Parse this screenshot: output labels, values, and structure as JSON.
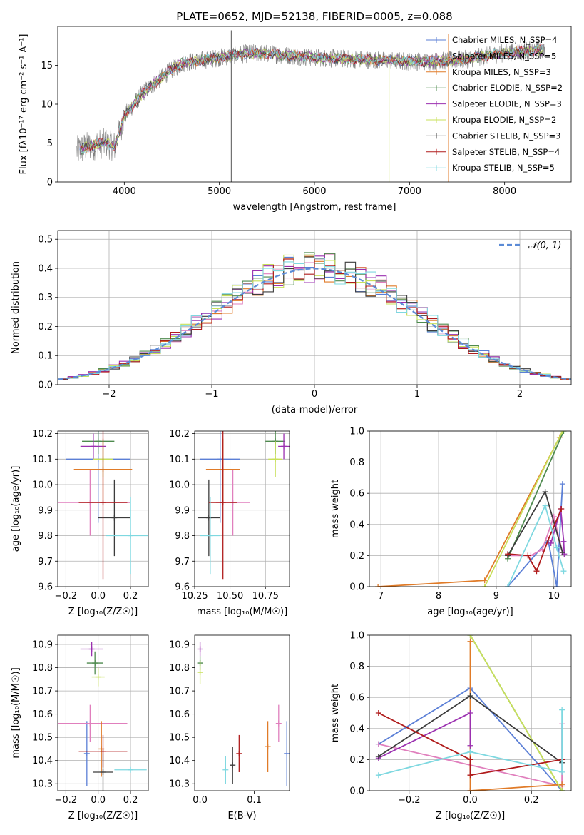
{
  "chart_data": [
    {
      "id": "spectrum",
      "type": "line",
      "title": "PLATE=0652, MJD=52138, FIBERID=0005, z=0.088",
      "xlabel": "wavelength [Angstrom, rest frame]",
      "ylabel": "Flux [fλ10⁻¹⁷ erg cm⁻² s⁻¹ A⁻¹]",
      "xlim": [
        3300,
        8700
      ],
      "ylim": [
        0,
        20
      ],
      "xticks": [
        4000,
        5000,
        6000,
        7000,
        8000
      ],
      "yticks": [
        0,
        5,
        10,
        15
      ],
      "legend_position": "top-right",
      "continuum": {
        "x": [
          3500,
          3600,
          3700,
          3800,
          3900,
          4000,
          4100,
          4200,
          4300,
          4400,
          4500,
          4600,
          4700,
          4800,
          4900,
          5000,
          5200,
          5400,
          5600,
          5800,
          6000,
          6200,
          6400,
          6600,
          6800,
          7000,
          7200,
          7400,
          7600,
          7800,
          8000,
          8200,
          8400
        ],
        "y": [
          4.0,
          4.5,
          4.8,
          5.0,
          4.6,
          8.5,
          10.0,
          11.5,
          12.5,
          13.5,
          14.5,
          15.2,
          15.5,
          15.6,
          15.8,
          16.0,
          16.4,
          16.6,
          16.4,
          16.2,
          16.0,
          15.9,
          15.8,
          15.7,
          15.6,
          15.5,
          15.5,
          15.6,
          15.8,
          16.2,
          16.6,
          16.8,
          17.0
        ]
      },
      "series": [
        {
          "name": "Chabrier MILES, N_SSP=4",
          "color": "#5b7fd6"
        },
        {
          "name": "Salpeter MILES, N_SSP=5",
          "color": "#e07fbd"
        },
        {
          "name": "Kroupa MILES, N_SSP=3",
          "color": "#e07b28"
        },
        {
          "name": "Chabrier ELODIE, N_SSP=2",
          "color": "#4e8a4e"
        },
        {
          "name": "Salpeter ELODIE, N_SSP=3",
          "color": "#9b30b0"
        },
        {
          "name": "Kroupa ELODIE, N_SSP=2",
          "color": "#c8e05a"
        },
        {
          "name": "Chabrier STELIB, N_SSP=3",
          "color": "#3c3c3c"
        },
        {
          "name": "Salpeter STELIB, N_SSP=4",
          "color": "#b01c1c"
        },
        {
          "name": "Kroupa STELIB, N_SSP=5",
          "color": "#7ed8e0"
        }
      ]
    },
    {
      "id": "residuals",
      "type": "line",
      "xlabel": "(data-model)/error",
      "ylabel": "Normed distribution",
      "xlim": [
        -2.5,
        2.5
      ],
      "ylim": [
        0,
        0.53
      ],
      "xticks": [
        -2,
        -1,
        0,
        1,
        2
      ],
      "yticks": [
        0.0,
        0.1,
        0.2,
        0.3,
        0.4,
        0.5
      ],
      "grid": true,
      "legend_position": "top-right",
      "legend_label": "𝒩(0, 1)",
      "normal_curve": {
        "mean": 0,
        "std": 1,
        "color": "#5b8bd6"
      },
      "bin_width": 0.1
    },
    {
      "id": "age-vs-z",
      "type": "scatter",
      "xlabel": "Z [log₁₀(Z/Z☉)]",
      "ylabel": "age  [log₁₀(age/yr)]",
      "xlim": [
        -0.25,
        0.31
      ],
      "ylim": [
        9.6,
        10.21
      ],
      "xticks": [
        -0.2,
        0.0,
        0.2
      ],
      "yticks": [
        9.6,
        9.7,
        9.8,
        9.9,
        10.0,
        10.1,
        10.2
      ],
      "grid": true,
      "points": [
        {
          "series": "Chabrier MILES",
          "x": 0.0,
          "y": 10.1,
          "xerr": 0.2,
          "yerr": 0.25
        },
        {
          "series": "Salpeter MILES",
          "x": -0.05,
          "y": 9.93,
          "xerr": 0.25,
          "yerr": 0.13
        },
        {
          "series": "Kroupa MILES",
          "x": 0.03,
          "y": 10.06,
          "xerr": 0.18,
          "yerr": 0.12
        },
        {
          "series": "Chabrier ELODIE",
          "x": 0.0,
          "y": 10.17,
          "xerr": 0.1,
          "yerr": 0.05
        },
        {
          "series": "Salpeter ELODIE",
          "x": -0.03,
          "y": 10.15,
          "xerr": 0.08,
          "yerr": 0.05
        },
        {
          "series": "Kroupa ELODIE",
          "x": 0.03,
          "y": 10.1,
          "xerr": 0.06,
          "yerr": 0.07
        },
        {
          "series": "Chabrier STELIB",
          "x": 0.1,
          "y": 9.87,
          "xerr": 0.1,
          "yerr": 0.15
        },
        {
          "series": "Salpeter STELIB",
          "x": 0.03,
          "y": 9.93,
          "xerr": 0.15,
          "yerr": 0.3
        },
        {
          "series": "Kroupa STELIB",
          "x": 0.2,
          "y": 9.8,
          "xerr": 0.15,
          "yerr": 0.15
        }
      ]
    },
    {
      "id": "age-vs-mass",
      "type": "scatter",
      "xlabel": "mass [log₁₀(M/M☉)]",
      "xlim": [
        10.25,
        10.92
      ],
      "ylim": [
        9.6,
        10.21
      ],
      "xticks": [
        10.25,
        10.5,
        10.75
      ],
      "yticks": [
        9.6,
        9.7,
        9.8,
        9.9,
        10.0,
        10.1,
        10.2
      ],
      "grid": true,
      "points": [
        {
          "series": "Chabrier MILES",
          "x": 10.43,
          "y": 10.1,
          "xerr": 0.14,
          "yerr": 0.25
        },
        {
          "series": "Salpeter MILES",
          "x": 10.52,
          "y": 9.93,
          "xerr": 0.12,
          "yerr": 0.13
        },
        {
          "series": "Kroupa MILES",
          "x": 10.45,
          "y": 10.06,
          "xerr": 0.12,
          "yerr": 0.12
        },
        {
          "series": "Chabrier ELODIE",
          "x": 10.82,
          "y": 10.17,
          "xerr": 0.07,
          "yerr": 0.05
        },
        {
          "series": "Salpeter ELODIE",
          "x": 10.88,
          "y": 10.15,
          "xerr": 0.04,
          "yerr": 0.05
        },
        {
          "series": "Kroupa ELODIE",
          "x": 10.82,
          "y": 10.1,
          "xerr": 0.05,
          "yerr": 0.07
        },
        {
          "series": "Chabrier STELIB",
          "x": 10.35,
          "y": 9.87,
          "xerr": 0.08,
          "yerr": 0.15
        },
        {
          "series": "Salpeter STELIB",
          "x": 10.45,
          "y": 9.93,
          "xerr": 0.1,
          "yerr": 0.3
        },
        {
          "series": "Kroupa STELIB",
          "x": 10.36,
          "y": 9.8,
          "xerr": 0.07,
          "yerr": 0.15
        }
      ]
    },
    {
      "id": "weight-vs-age",
      "type": "line",
      "xlabel": "age  [log₁₀(age/yr)]",
      "ylabel": "mass weight",
      "xlim": [
        6.8,
        10.3
      ],
      "ylim": [
        0,
        1
      ],
      "xticks": [
        7,
        8,
        9,
        10
      ],
      "yticks": [
        0.0,
        0.2,
        0.4,
        0.6,
        0.8,
        1.0
      ],
      "grid": true,
      "lines": [
        {
          "series": "Chabrier MILES",
          "x": [
            9.2,
            9.9,
            10.05,
            10.15
          ],
          "y": [
            0.0,
            0.3,
            0.0,
            0.66
          ]
        },
        {
          "series": "Salpeter MILES",
          "x": [
            9.2,
            9.6,
            9.8,
            10.0,
            10.15
          ],
          "y": [
            0.2,
            0.2,
            0.24,
            0.45,
            0.22
          ]
        },
        {
          "series": "Kroupa MILES",
          "x": [
            6.95,
            8.8,
            10.1
          ],
          "y": [
            0.0,
            0.04,
            0.96
          ]
        },
        {
          "series": "Chabrier ELODIE",
          "x": [
            9.2,
            10.17
          ],
          "y": [
            0.18,
            1.0
          ]
        },
        {
          "series": "Salpeter ELODIE",
          "x": [
            9.95,
            10.12,
            10.17,
            10.18
          ],
          "y": [
            0.28,
            0.5,
            0.29,
            0.21
          ]
        },
        {
          "series": "Kroupa ELODIE",
          "x": [
            8.8,
            10.15
          ],
          "y": [
            0.0,
            1.0
          ]
        },
        {
          "series": "Chabrier STELIB",
          "x": [
            9.2,
            9.85,
            10.15
          ],
          "y": [
            0.2,
            0.61,
            0.22
          ]
        },
        {
          "series": "Salpeter STELIB",
          "x": [
            9.2,
            9.55,
            9.7,
            9.9,
            10.13
          ],
          "y": [
            0.21,
            0.2,
            0.1,
            0.3,
            0.5
          ]
        },
        {
          "series": "Kroupa STELIB",
          "x": [
            9.2,
            9.85,
            10.05,
            10.17
          ],
          "y": [
            0.0,
            0.52,
            0.25,
            0.1
          ]
        }
      ]
    },
    {
      "id": "mass-vs-z",
      "type": "scatter",
      "xlabel": "Z [log₁₀(Z/Z☉)]",
      "ylabel": "mass [log₁₀(M/M☉)]",
      "xlim": [
        -0.25,
        0.31
      ],
      "ylim": [
        10.27,
        10.94
      ],
      "xticks": [
        -0.2,
        0.0,
        0.2
      ],
      "yticks": [
        10.3,
        10.4,
        10.5,
        10.6,
        10.7,
        10.8,
        10.9
      ],
      "grid": true,
      "points": [
        {
          "series": "Chabrier MILES",
          "x": -0.07,
          "y": 10.43,
          "xerr": 0.0,
          "yerr": 0.14
        },
        {
          "series": "Salpeter MILES",
          "x": -0.05,
          "y": 10.56,
          "xerr": 0.23,
          "yerr": 0.08
        },
        {
          "series": "Kroupa MILES",
          "x": 0.02,
          "y": 10.45,
          "xerr": 0.0,
          "yerr": 0.12
        },
        {
          "series": "Chabrier ELODIE",
          "x": -0.02,
          "y": 10.82,
          "xerr": 0.05,
          "yerr": 0.05
        },
        {
          "series": "Salpeter ELODIE",
          "x": -0.04,
          "y": 10.88,
          "xerr": 0.07,
          "yerr": 0.03
        },
        {
          "series": "Kroupa ELODIE",
          "x": 0.0,
          "y": 10.76,
          "xerr": 0.04,
          "yerr": 0.04
        },
        {
          "series": "Chabrier STELIB",
          "x": 0.03,
          "y": 10.35,
          "xerr": 0.06,
          "yerr": 0.08
        },
        {
          "series": "Salpeter STELIB",
          "x": 0.03,
          "y": 10.44,
          "xerr": 0.15,
          "yerr": 0.07
        },
        {
          "series": "Kroupa STELIB",
          "x": 0.2,
          "y": 10.36,
          "xerr": 0.1,
          "yerr": 0.0
        }
      ]
    },
    {
      "id": "mass-vs-ebv",
      "type": "scatter",
      "xlabel": "E(B-V)",
      "xlim": [
        -0.01,
        0.165
      ],
      "ylim": [
        10.27,
        10.94
      ],
      "xticks": [
        0.0,
        0.1
      ],
      "yticks": [
        10.3,
        10.4,
        10.5,
        10.6,
        10.7,
        10.8,
        10.9
      ],
      "grid": false,
      "points": [
        {
          "series": "Chabrier MILES",
          "x": 0.16,
          "y": 10.43,
          "yerr": 0.14
        },
        {
          "series": "Salpeter MILES",
          "x": 0.145,
          "y": 10.56,
          "yerr": 0.08
        },
        {
          "series": "Kroupa MILES",
          "x": 0.125,
          "y": 10.46,
          "yerr": 0.11
        },
        {
          "series": "Chabrier ELODIE",
          "x": 0.0,
          "y": 10.82,
          "yerr": 0.03
        },
        {
          "series": "Salpeter ELODIE",
          "x": 0.0,
          "y": 10.88,
          "yerr": 0.03
        },
        {
          "series": "Kroupa ELODIE",
          "x": 0.0,
          "y": 10.78,
          "yerr": 0.05
        },
        {
          "series": "Chabrier STELIB",
          "x": 0.06,
          "y": 10.38,
          "yerr": 0.08
        },
        {
          "series": "Salpeter STELIB",
          "x": 0.072,
          "y": 10.43,
          "yerr": 0.08
        },
        {
          "series": "Kroupa STELIB",
          "x": 0.047,
          "y": 10.36,
          "yerr": 0.06
        }
      ]
    },
    {
      "id": "weight-vs-z",
      "type": "line",
      "xlabel": "Z [log₁₀(Z/Z☉)]",
      "ylabel": "mass weight",
      "xlim": [
        -0.33,
        0.33
      ],
      "ylim": [
        0,
        1
      ],
      "xticks": [
        -0.2,
        0.0,
        0.2
      ],
      "yticks": [
        0.0,
        0.2,
        0.4,
        0.6,
        0.8,
        1.0
      ],
      "grid": true,
      "lines": [
        {
          "series": "Chabrier MILES",
          "x": [
            -0.3,
            0.0,
            0.3
          ],
          "y": [
            0.3,
            0.66,
            0.0
          ]
        },
        {
          "series": "Salpeter MILES",
          "x": [
            -0.3,
            0.3,
            0.3
          ],
          "y": [
            0.3,
            0.03,
            0.43
          ]
        },
        {
          "series": "Kroupa MILES",
          "x": [
            0.0,
            0.0,
            0.3,
            0.0
          ],
          "y": [
            0.96,
            0.0,
            0.04,
            0.0
          ]
        },
        {
          "series": "Chabrier ELODIE",
          "x": [
            0.0,
            0.3
          ],
          "y": [
            1.0,
            0.0
          ]
        },
        {
          "series": "Salpeter ELODIE",
          "x": [
            -0.3,
            0.0,
            0.0
          ],
          "y": [
            0.21,
            0.5,
            0.29
          ]
        },
        {
          "series": "Kroupa ELODIE",
          "x": [
            0.0,
            0.3
          ],
          "y": [
            1.0,
            0.0
          ]
        },
        {
          "series": "Chabrier STELIB",
          "x": [
            -0.3,
            0.0,
            0.3
          ],
          "y": [
            0.22,
            0.61,
            0.18
          ]
        },
        {
          "series": "Salpeter STELIB",
          "x": [
            -0.3,
            0.0,
            0.0,
            0.3
          ],
          "y": [
            0.5,
            0.2,
            0.1,
            0.2
          ]
        },
        {
          "series": "Kroupa STELIB",
          "x": [
            -0.3,
            0.0,
            0.3,
            0.3
          ],
          "y": [
            0.1,
            0.25,
            0.12,
            0.52
          ]
        }
      ]
    }
  ]
}
